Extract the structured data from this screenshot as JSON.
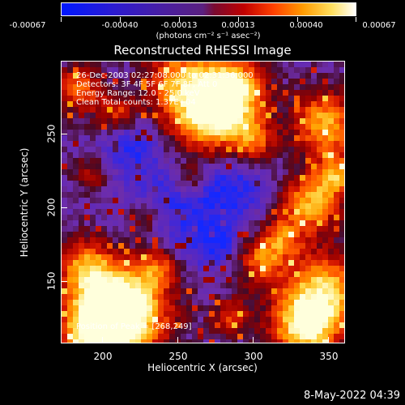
{
  "colorbar": {
    "tick_labels": [
      "-0.00067",
      "-0.00040",
      "-0.00013",
      "0.00013",
      "0.00040",
      "0.00067"
    ],
    "units": "(photons cm⁻² s⁻¹ asec⁻²)"
  },
  "title": "Reconstructed RHESSI Image",
  "info": {
    "time": "26-Dec-2003 02:27:08.000 to 02:31:36.000",
    "detectors": "Detectors: 3F 4F 5F 6F 7F 8F, Att 0",
    "energy": "Energy Range: 12.0 - 25.0 keV",
    "method": "Clean     Total counts: 1.37E+04",
    "peak": "Position of Peak = [268,249]"
  },
  "axes": {
    "xlabel": "Heliocentric X (arcsec)",
    "ylabel": "Heliocentric Y (arcsec)",
    "xticks": [
      "200",
      "250",
      "300",
      "350"
    ],
    "yticks": [
      "150",
      "200",
      "250"
    ]
  },
  "footer": {
    "date": "8-May-2022 04:39"
  }
}
